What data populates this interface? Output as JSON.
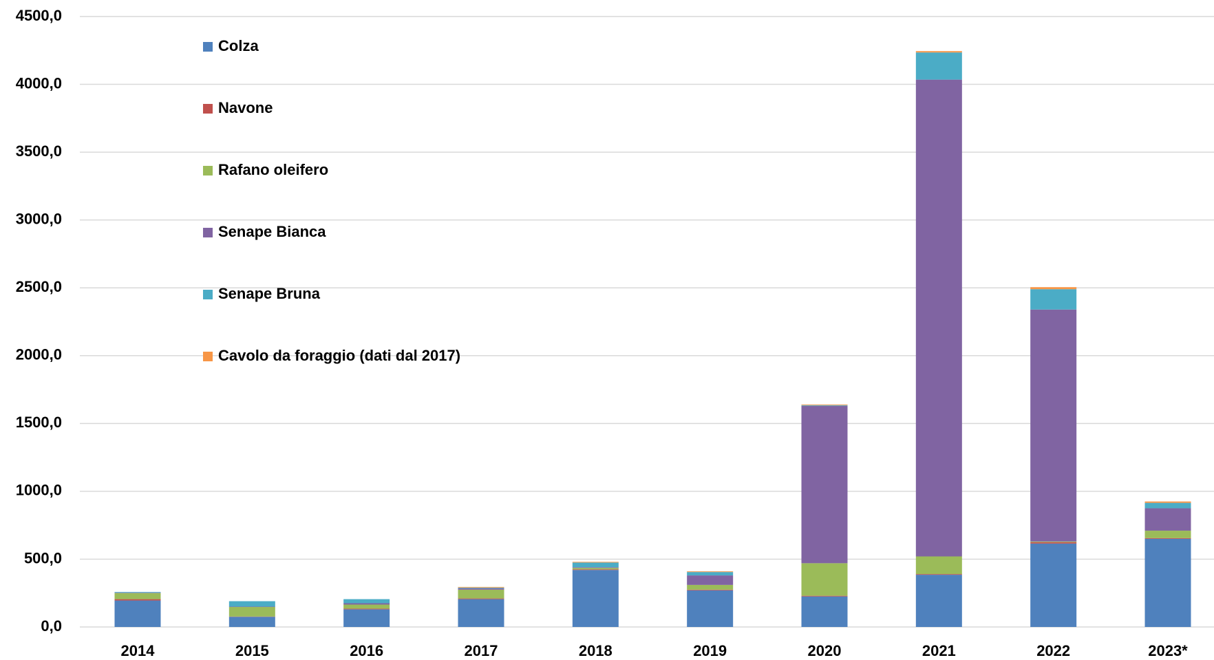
{
  "chart_data": {
    "type": "stacked_bar",
    "categories": [
      "2014",
      "2015",
      "2016",
      "2017",
      "2018",
      "2019",
      "2020",
      "2021",
      "2022",
      "2023*"
    ],
    "series": [
      {
        "name": "Colza",
        "color": "#4f81bd",
        "values": [
          195,
          75,
          130,
          205,
          420,
          270,
          225,
          385,
          615,
          650
        ]
      },
      {
        "name": "Navone",
        "color": "#c0504d",
        "values": [
          10,
          2,
          5,
          5,
          5,
          5,
          5,
          5,
          10,
          5
        ]
      },
      {
        "name": "Rafano oleifero",
        "color": "#9bbb59",
        "values": [
          45,
          70,
          30,
          65,
          10,
          35,
          240,
          130,
          5,
          55
        ]
      },
      {
        "name": "Senape Bianca",
        "color": "#8064a2",
        "values": [
          3,
          3,
          10,
          10,
          5,
          70,
          1160,
          3515,
          1710,
          165
        ]
      },
      {
        "name": "Senape Bruna",
        "color": "#4bacc6",
        "values": [
          5,
          40,
          30,
          5,
          35,
          25,
          5,
          200,
          150,
          40
        ]
      },
      {
        "name": "Cavolo da foraggio (dati dal 2017)",
        "color": "#f79646",
        "values": [
          0,
          0,
          0,
          5,
          5,
          5,
          5,
          10,
          15,
          10
        ]
      }
    ],
    "ylim": [
      0,
      4500
    ],
    "yticks": [
      {
        "value": 0,
        "label": "0,0"
      },
      {
        "value": 500,
        "label": "500,0"
      },
      {
        "value": 1000,
        "label": "1000,0"
      },
      {
        "value": 1500,
        "label": "1500,0"
      },
      {
        "value": 2000,
        "label": "2000,0"
      },
      {
        "value": 2500,
        "label": "2500,0"
      },
      {
        "value": 3000,
        "label": "3000,0"
      },
      {
        "value": 3500,
        "label": "3500,0"
      },
      {
        "value": 4000,
        "label": "4000,0"
      },
      {
        "value": 4500,
        "label": "4500,0"
      }
    ],
    "grid": true,
    "legend": "upper left"
  }
}
